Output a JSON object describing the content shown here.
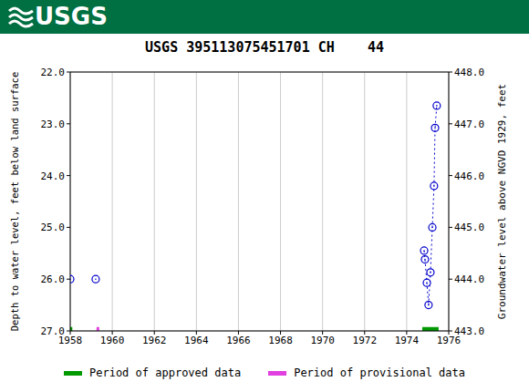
{
  "header": {
    "logo_text": "USGS"
  },
  "chart_data": {
    "type": "scatter",
    "title": "USGS 395113075451701 CH    44",
    "y_label": "Depth to water level, feet below land surface",
    "y2_label": "Groundwater level above NGVD 1929, feet",
    "xlim": [
      1958,
      1976
    ],
    "xticks": [
      1958,
      1960,
      1962,
      1964,
      1966,
      1968,
      1970,
      1972,
      1974,
      1976
    ],
    "ylim": [
      22,
      27
    ],
    "yticks": [
      {
        "value": 22,
        "label": "22.0"
      },
      {
        "value": 23,
        "label": "23.0"
      },
      {
        "value": 24,
        "label": "24.0"
      },
      {
        "value": 25,
        "label": "25.0"
      },
      {
        "value": 26,
        "label": "26.0"
      },
      {
        "value": 27,
        "label": "27.0"
      }
    ],
    "y2lim": [
      443,
      448
    ],
    "y2ticks": [
      {
        "value": 443,
        "label": "443.0"
      },
      {
        "value": 444,
        "label": "444.0"
      },
      {
        "value": 445,
        "label": "445.0"
      },
      {
        "value": 446,
        "label": "446.0"
      },
      {
        "value": 447,
        "label": "447.0"
      },
      {
        "value": 448,
        "label": "448.0"
      }
    ],
    "grid": true,
    "series": [
      {
        "color": "#0000cc",
        "marker": "circle",
        "line_style": "none",
        "x": [
          1958.0,
          1959.21
        ],
        "values": [
          26.0,
          26.0
        ]
      },
      {
        "color": "#0000cc",
        "marker": "circle",
        "line_style": "dotted",
        "x": [
          1974.83,
          1974.87,
          1974.96,
          1975.04,
          1975.13,
          1975.22,
          1975.3,
          1975.35,
          1975.43
        ],
        "values": [
          25.45,
          25.62,
          26.07,
          26.5,
          25.87,
          25.0,
          24.2,
          23.08,
          22.65
        ]
      }
    ],
    "periods": [
      {
        "name": "Period of approved data",
        "color": "#009900",
        "ranges": [
          [
            1958.0,
            1958.1
          ],
          [
            1974.74,
            1975.52
          ]
        ]
      },
      {
        "name": "Period of provisional data",
        "color": "#e040e0",
        "ranges": [
          [
            1959.25,
            1959.38
          ]
        ]
      }
    ]
  }
}
